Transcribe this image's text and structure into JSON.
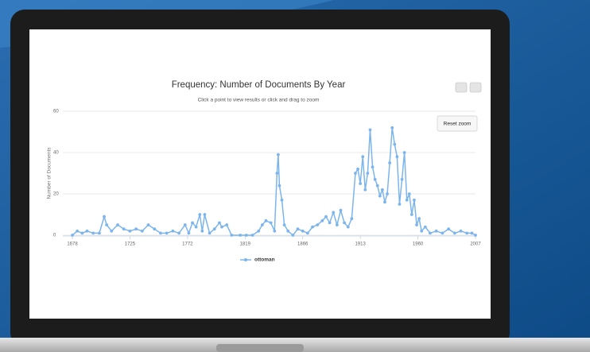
{
  "chart_data": {
    "type": "line",
    "title": "Frequency: Number of Documents By Year",
    "subtitle": "Click a point to view results or click and drag to zoom",
    "y_label": "Number of Documents",
    "button": "Reset zoom",
    "xlim": [
      1678,
      2007
    ],
    "xticks": [
      1678,
      1725,
      1772,
      1819,
      1866,
      1913,
      1960,
      2007
    ],
    "ylim": [
      0,
      60
    ],
    "yticks": [
      0,
      20,
      40,
      60
    ],
    "grid": true,
    "legend": "bottom",
    "x": [
      1678,
      1682,
      1686,
      1690,
      1695,
      1700,
      1704,
      1706,
      1710,
      1715,
      1720,
      1725,
      1730,
      1735,
      1740,
      1745,
      1750,
      1755,
      1760,
      1765,
      1770,
      1773,
      1776,
      1779,
      1782,
      1784,
      1786,
      1790,
      1794,
      1798,
      1800,
      1804,
      1808,
      1815,
      1820,
      1825,
      1830,
      1833,
      1836,
      1840,
      1843,
      1845,
      1846,
      1847,
      1849,
      1851,
      1854,
      1858,
      1862,
      1866,
      1870,
      1874,
      1878,
      1882,
      1885,
      1888,
      1891,
      1894,
      1897,
      1900,
      1903,
      1906,
      1909,
      1911,
      1913,
      1915,
      1917,
      1919,
      1921,
      1923,
      1925,
      1927,
      1929,
      1931,
      1933,
      1935,
      1937,
      1939,
      1941,
      1943,
      1945,
      1947,
      1949,
      1951,
      1953,
      1955,
      1957,
      1959,
      1961,
      1963,
      1966,
      1970,
      1975,
      1980,
      1985,
      1990,
      1995,
      2000,
      2004,
      2007
    ],
    "series": [
      {
        "name": "ottoman",
        "color": "#7cb5ec",
        "values": [
          0,
          2,
          1,
          2,
          1,
          1,
          9,
          5,
          2,
          5,
          3,
          2,
          3,
          2,
          5,
          3,
          1,
          1,
          2,
          1,
          5,
          1,
          6,
          4,
          10,
          2,
          10,
          1,
          3,
          6,
          4,
          5,
          0,
          0,
          0,
          0,
          2,
          5,
          7,
          6,
          2,
          30,
          39,
          24,
          17,
          5,
          2,
          0,
          3,
          2,
          1,
          4,
          5,
          7,
          9,
          6,
          11,
          5,
          12,
          6,
          4,
          8,
          30,
          32,
          25,
          38,
          22,
          30,
          51,
          33,
          27,
          24,
          19,
          22,
          16,
          20,
          35,
          52,
          44,
          38,
          15,
          27,
          40,
          17,
          20,
          10,
          17,
          5,
          8,
          2,
          4,
          1,
          2,
          1,
          3,
          1,
          2,
          1,
          1,
          0
        ]
      }
    ]
  }
}
